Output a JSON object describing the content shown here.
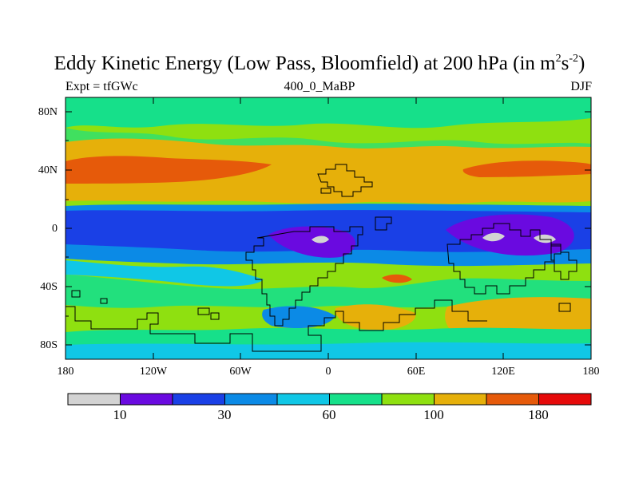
{
  "title_main": "Eddy Kinetic Energy (Low Pass, Bloomfield) at 200 hPa (in m",
  "title_sup1": "2",
  "title_mid": "s",
  "title_sup2": "-2",
  "title_end": ")",
  "subtitle_left": "Expt = tfGWc",
  "subtitle_center": "400_0_MaBP",
  "subtitle_right": "DJF",
  "y_axis_labels": [
    "80N",
    "40N",
    "0",
    "40S",
    "80S"
  ],
  "x_axis_labels": [
    "180",
    "120W",
    "60W",
    "0",
    "60E",
    "120E",
    "180"
  ],
  "colorbar": {
    "colors": [
      "#d3d3d3",
      "#6a0ae0",
      "#1a40e6",
      "#0b8ae6",
      "#10c7e6",
      "#16e08a",
      "#8fe010",
      "#e6b00a",
      "#e65a0a",
      "#e60a0a"
    ],
    "labels": [
      {
        "text": "10",
        "boundary": 1
      },
      {
        "text": "30",
        "boundary": 3
      },
      {
        "text": "60",
        "boundary": 5
      },
      {
        "text": "100",
        "boundary": 7
      },
      {
        "text": "180",
        "boundary": 9
      }
    ]
  }
}
